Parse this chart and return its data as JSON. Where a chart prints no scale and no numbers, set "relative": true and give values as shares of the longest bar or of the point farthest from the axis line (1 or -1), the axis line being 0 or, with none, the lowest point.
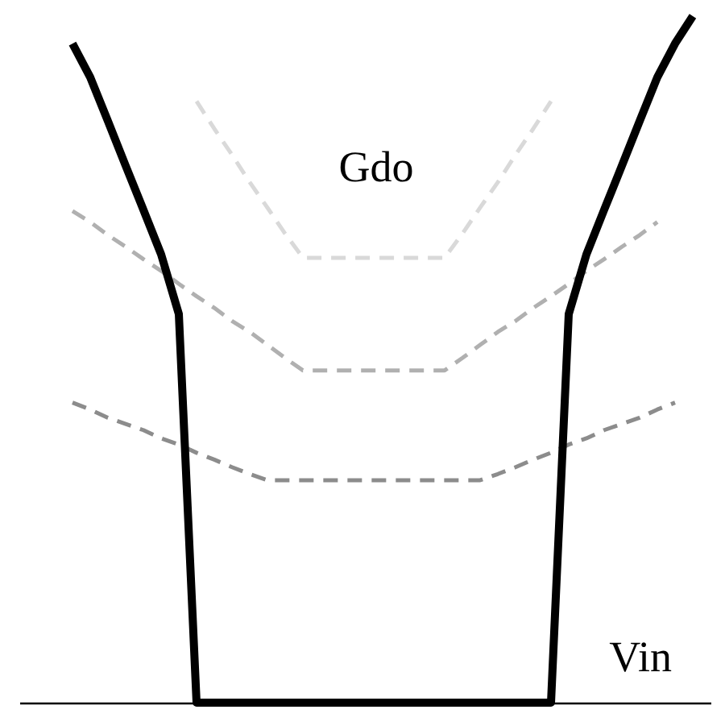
{
  "chart_data": {
    "type": "line",
    "relative": true,
    "xlabel": "Vin",
    "ylabel": "Gdo",
    "categories": [
      null,
      null,
      null,
      null,
      null,
      null,
      null,
      null,
      null,
      null,
      null,
      null,
      null,
      null,
      null,
      null,
      null,
      null,
      null,
      null,
      null,
      null,
      null,
      null,
      null,
      null,
      null,
      null,
      null,
      null,
      null,
      null,
      null,
      null,
      null,
      null,
      null,
      null,
      null,
      null
    ],
    "series": [
      {
        "color": "#000000",
        "line_style": "solid",
        "values": [
          null,
          null,
          null,
          0.96,
          0.911,
          0.847,
          0.782,
          0.718,
          0.653,
          0.566,
          0,
          0,
          0,
          0,
          0,
          0,
          0,
          0,
          0,
          0,
          0,
          0,
          0,
          0,
          0,
          0,
          0,
          0,
          0,
          0,
          0,
          0.566,
          0.653,
          0.718,
          0.782,
          0.847,
          0.911,
          0.96,
          1.0,
          null
        ]
      },
      {
        "color": "#d9d9d9",
        "line_style": "dashed",
        "values": [
          null,
          null,
          null,
          null,
          null,
          null,
          null,
          null,
          null,
          null,
          0.876,
          0.836,
          0.798,
          0.758,
          0.721,
          0.683,
          0.648,
          0.648,
          0.648,
          0.648,
          0.648,
          0.648,
          0.648,
          0.648,
          0.648,
          0.683,
          0.721,
          0.758,
          0.798,
          0.836,
          0.876,
          null,
          null,
          null,
          null,
          null,
          null,
          null,
          null,
          null
        ]
      },
      {
        "color": "#b0b0b0",
        "line_style": "dashed",
        "values": [
          null,
          null,
          null,
          0.716,
          0.7,
          0.681,
          0.664,
          0.646,
          0.629,
          0.61,
          0.592,
          0.575,
          0.556,
          0.54,
          0.521,
          0.502,
          0.484,
          0.484,
          0.484,
          0.484,
          0.484,
          0.484,
          0.484,
          0.484,
          0.484,
          0.502,
          0.521,
          0.54,
          0.556,
          0.575,
          0.592,
          0.61,
          0.629,
          0.646,
          0.664,
          0.681,
          0.7,
          null,
          null,
          null
        ]
      },
      {
        "color": "#8c8c8c",
        "line_style": "dashed",
        "values": [
          null,
          null,
          null,
          0.437,
          0.427,
          0.415,
          0.406,
          0.397,
          0.385,
          0.376,
          0.364,
          0.354,
          0.343,
          0.333,
          0.324,
          0.324,
          0.324,
          0.324,
          0.324,
          0.324,
          0.324,
          0.324,
          0.324,
          0.324,
          0.324,
          0.324,
          0.324,
          0.333,
          0.343,
          0.354,
          0.364,
          0.376,
          0.385,
          0.397,
          0.406,
          0.415,
          0.427,
          0.437,
          null,
          null
        ]
      }
    ]
  }
}
